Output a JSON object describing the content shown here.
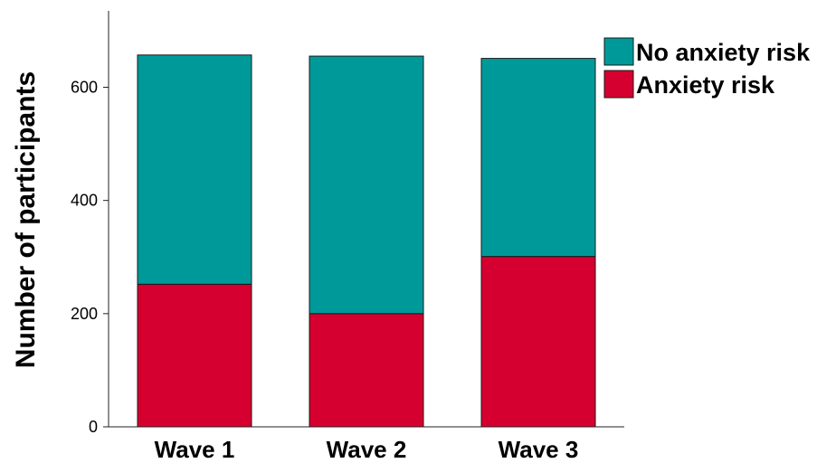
{
  "chart_data": {
    "type": "bar",
    "stacked": true,
    "categories": [
      "Wave 1",
      "Wave 2",
      "Wave 3"
    ],
    "series": [
      {
        "name": "Anxiety risk",
        "values": [
          252,
          200,
          301
        ],
        "color": "#d5002f"
      },
      {
        "name": "No anxiety risk",
        "values": [
          405,
          455,
          350
        ],
        "color": "#00999a"
      }
    ],
    "legend_order": [
      "No anxiety risk",
      "Anxiety risk"
    ],
    "title": "",
    "xlabel": "",
    "ylabel": "Number of participants",
    "ylim": [
      0,
      735
    ],
    "yticks": [
      0,
      200,
      400,
      600
    ],
    "legend_position": "top-right",
    "grid": false
  }
}
